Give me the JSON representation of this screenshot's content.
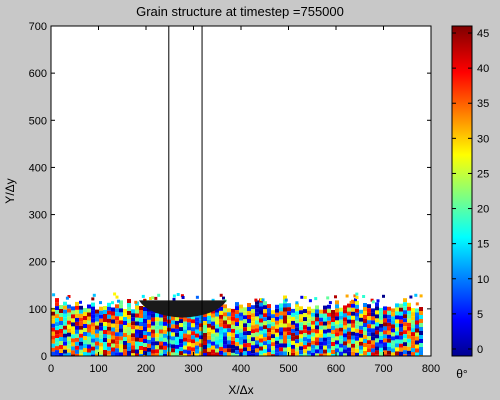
{
  "chart_data": {
    "type": "heatmap",
    "title": "Grain structure at timestep =755000",
    "xlabel": "X/Δx",
    "ylabel": "Y/Δy",
    "xlim": [
      0,
      800
    ],
    "ylim": [
      0,
      700
    ],
    "xticks": [
      "0",
      "100",
      "200",
      "300",
      "400",
      "500",
      "600",
      "700",
      "800"
    ],
    "yticks": [
      "0",
      "100",
      "200",
      "300",
      "400",
      "500",
      "600",
      "700"
    ],
    "grid": false,
    "colorbar": {
      "label": "θ°",
      "range": [
        -1,
        46
      ],
      "ticks": [
        "0",
        "5",
        "10",
        "15",
        "20",
        "25",
        "30",
        "35",
        "40",
        "45"
      ],
      "colormap": "jet"
    },
    "vertical_lines_x": [
      248,
      318
    ],
    "grain_layer": {
      "x_range": [
        0,
        780
      ],
      "base_height": 105,
      "dark_region": {
        "x_range": [
          185,
          370
        ],
        "y_range": [
          94,
          118
        ]
      }
    }
  },
  "colors": {
    "background": "#c8c8c8",
    "plot_background": "#ffffff",
    "dark_region": "#1a1a1a"
  }
}
